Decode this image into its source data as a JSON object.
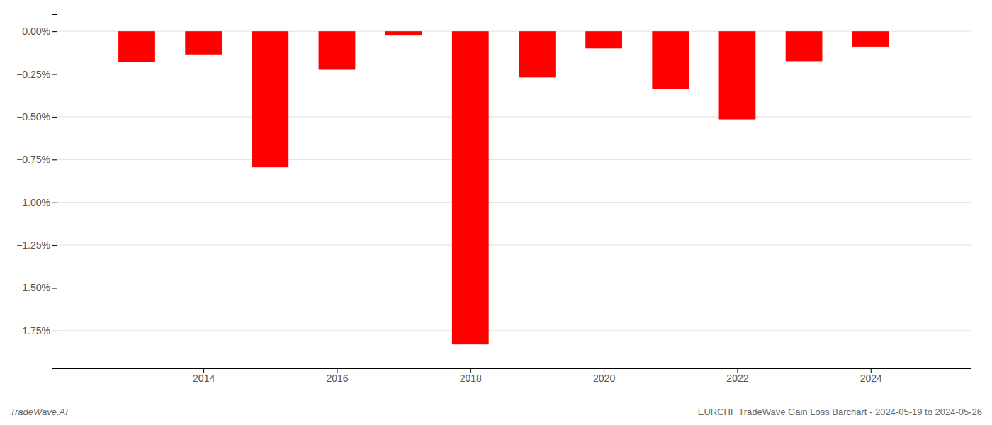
{
  "chart_data": {
    "type": "bar",
    "title": "EURCHF TradeWave Gain Loss Barchart - 2024-05-19 to 2024-05-26",
    "annotations": [
      "TradeWave.AI"
    ],
    "x": [
      2013,
      2014,
      2015,
      2016,
      2017,
      2018,
      2019,
      2020,
      2021,
      2022,
      2023,
      2024
    ],
    "values": [
      -0.18,
      -0.135,
      -0.795,
      -0.225,
      -0.025,
      -1.83,
      -0.27,
      -0.1,
      -0.335,
      -0.515,
      -0.175,
      -0.09
    ],
    "color": "#ff0000",
    "xlim": [
      2011.8,
      2025.5
    ],
    "xticks": [
      2014,
      2016,
      2018,
      2020,
      2022,
      2024
    ],
    "ylim": [
      -1.97,
      0.1
    ],
    "yticks": [
      {
        "value": 0.0,
        "label": "0.00%"
      },
      {
        "value": -0.25,
        "label": "−0.25%"
      },
      {
        "value": -0.5,
        "label": "−0.50%"
      },
      {
        "value": -0.75,
        "label": "−0.75%"
      },
      {
        "value": -1.0,
        "label": "−1.00%"
      },
      {
        "value": -1.25,
        "label": "−1.25%"
      },
      {
        "value": -1.5,
        "label": "−1.50%"
      },
      {
        "value": -1.75,
        "label": "−1.75%"
      }
    ],
    "grid": true
  }
}
